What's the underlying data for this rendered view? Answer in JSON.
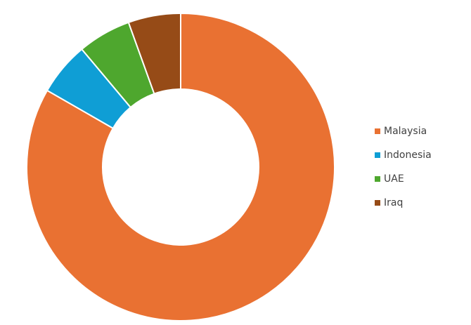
{
  "chart_data": {
    "type": "donut",
    "categories": [
      "Malaysia",
      "Indonesia",
      "UAE",
      "Iraq"
    ],
    "values": [
      83.3,
      5.6,
      5.6,
      5.5
    ],
    "colors": [
      "#e97132",
      "#0f9ed5",
      "#4ea72e",
      "#964b17"
    ],
    "legend": "right"
  }
}
